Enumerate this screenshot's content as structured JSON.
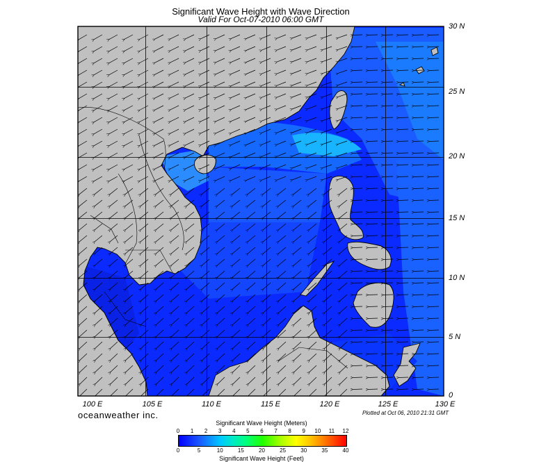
{
  "title": "Significant Wave Height with Wave Direction",
  "subtitle": "Valid For Oct-07-2010 06:00 GMT",
  "latitude_labels": [
    "30 N",
    "25 N",
    "20 N",
    "15 N",
    "10 N",
    "5 N",
    "0"
  ],
  "longitude_labels": [
    "100 E",
    "105 E",
    "110 E",
    "115 E",
    "120 E",
    "125 E",
    "130 E"
  ],
  "brand": "oceanweather inc.",
  "plotted": "Plotted at Oct 06, 2010 21:31 GMT",
  "colorbar": {
    "title_meters": "Significant Wave Height (Meters)",
    "title_feet": "Significant Wave Height (Feet)",
    "meters_ticks": [
      "0",
      "1",
      "2",
      "3",
      "4",
      "5",
      "6",
      "7",
      "8",
      "9",
      "10",
      "11",
      "12"
    ],
    "feet_ticks": [
      "0",
      "5",
      "10",
      "15",
      "20",
      "25",
      "30",
      "35",
      "40"
    ]
  },
  "colors": {
    "land": "#c0c0c0",
    "sea_calm": "#0a2aff",
    "sea_mid": "#1e6bff",
    "sea_high": "#19b4ff",
    "grid": "#000000"
  }
}
